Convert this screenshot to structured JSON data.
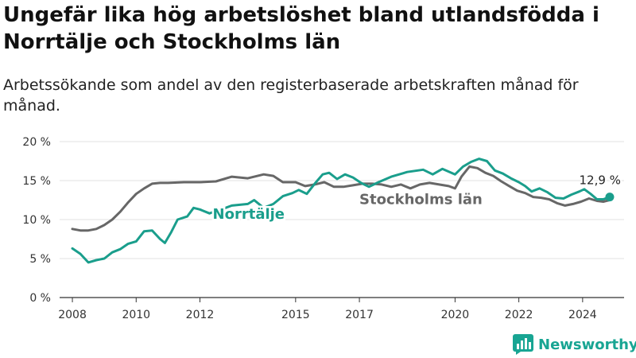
{
  "page": {
    "title": "Ungefär lika hög arbetslöshet bland utlandsfödda i Norrtälje och Stockholms län",
    "subtitle": "Arbetssökande som andel av den registerbaserade arbetskraften månad för månad.",
    "brand": "Newsworthy"
  },
  "colors": {
    "norrtalje": "#1a9e8c",
    "stockholm": "#676767",
    "grid": "#e1e1e1",
    "axis": "#333333",
    "brand": "#18a593"
  },
  "icons": {
    "brand_logo": "bar-chart-logo-icon"
  },
  "chart_data": {
    "type": "line",
    "title": "Ungefär lika hög arbetslöshet bland utlandsfödda i Norrtälje och Stockholms län",
    "subtitle": "Arbetssökande som andel av den registerbaserade arbetskraften månad för månad.",
    "xlabel": "",
    "ylabel": "",
    "ylim": [
      0,
      20
    ],
    "xlim": [
      2007.6,
      2025.3
    ],
    "y_ticks": [
      0,
      5,
      10,
      15,
      20
    ],
    "y_tick_labels": [
      "0 %",
      "5 %",
      "10 %",
      "15 %",
      "20 %"
    ],
    "x_ticks": [
      2008,
      2010,
      2012,
      2015,
      2017,
      2020,
      2022,
      2024
    ],
    "x_tick_labels": [
      "2008",
      "2010",
      "2012",
      "2015",
      "2017",
      "2020",
      "2022",
      "2024"
    ],
    "grid": true,
    "legend": "inline labels",
    "end_label": "12,9 %",
    "series": [
      {
        "name": "Norrtälje",
        "color": "#1a9e8c",
        "points": [
          [
            2008.0,
            6.3
          ],
          [
            2008.25,
            5.6
          ],
          [
            2008.5,
            4.5
          ],
          [
            2008.75,
            4.8
          ],
          [
            2009.0,
            5.0
          ],
          [
            2009.25,
            5.8
          ],
          [
            2009.5,
            6.2
          ],
          [
            2009.75,
            6.9
          ],
          [
            2010.0,
            7.2
          ],
          [
            2010.25,
            8.5
          ],
          [
            2010.5,
            8.6
          ],
          [
            2010.75,
            7.5
          ],
          [
            2010.9,
            7.0
          ],
          [
            2011.1,
            8.4
          ],
          [
            2011.3,
            10.0
          ],
          [
            2011.6,
            10.4
          ],
          [
            2011.8,
            11.5
          ],
          [
            2012.0,
            11.3
          ],
          [
            2012.3,
            10.8
          ],
          [
            2012.6,
            11.2
          ],
          [
            2012.8,
            11.5
          ],
          [
            2013.0,
            11.8
          ],
          [
            2013.5,
            12.0
          ],
          [
            2013.7,
            12.5
          ],
          [
            2014.0,
            11.5
          ],
          [
            2014.3,
            12.0
          ],
          [
            2014.6,
            13.0
          ],
          [
            2014.9,
            13.4
          ],
          [
            2015.1,
            13.8
          ],
          [
            2015.35,
            13.3
          ],
          [
            2015.6,
            14.6
          ],
          [
            2015.85,
            15.8
          ],
          [
            2016.05,
            16.0
          ],
          [
            2016.3,
            15.2
          ],
          [
            2016.55,
            15.8
          ],
          [
            2016.8,
            15.4
          ],
          [
            2017.05,
            14.7
          ],
          [
            2017.3,
            14.2
          ],
          [
            2017.6,
            14.8
          ],
          [
            2018.0,
            15.5
          ],
          [
            2018.5,
            16.1
          ],
          [
            2019.0,
            16.4
          ],
          [
            2019.3,
            15.8
          ],
          [
            2019.6,
            16.5
          ],
          [
            2020.0,
            15.8
          ],
          [
            2020.25,
            16.8
          ],
          [
            2020.5,
            17.4
          ],
          [
            2020.75,
            17.8
          ],
          [
            2021.0,
            17.5
          ],
          [
            2021.25,
            16.3
          ],
          [
            2021.5,
            15.9
          ],
          [
            2021.75,
            15.3
          ],
          [
            2022.0,
            14.8
          ],
          [
            2022.2,
            14.3
          ],
          [
            2022.4,
            13.6
          ],
          [
            2022.65,
            14.0
          ],
          [
            2022.9,
            13.5
          ],
          [
            2023.15,
            12.8
          ],
          [
            2023.4,
            12.7
          ],
          [
            2023.65,
            13.2
          ],
          [
            2023.9,
            13.6
          ],
          [
            2024.05,
            13.9
          ],
          [
            2024.25,
            13.3
          ],
          [
            2024.45,
            12.6
          ],
          [
            2024.65,
            12.6
          ],
          [
            2024.85,
            12.9
          ]
        ]
      },
      {
        "name": "Stockholms län",
        "color": "#676767",
        "points": [
          [
            2008.0,
            8.8
          ],
          [
            2008.25,
            8.6
          ],
          [
            2008.5,
            8.6
          ],
          [
            2008.75,
            8.8
          ],
          [
            2009.0,
            9.3
          ],
          [
            2009.25,
            10.0
          ],
          [
            2009.5,
            11.0
          ],
          [
            2009.75,
            12.2
          ],
          [
            2010.0,
            13.3
          ],
          [
            2010.25,
            14.0
          ],
          [
            2010.5,
            14.6
          ],
          [
            2010.75,
            14.7
          ],
          [
            2011.0,
            14.7
          ],
          [
            2011.5,
            14.8
          ],
          [
            2012.0,
            14.8
          ],
          [
            2012.5,
            14.9
          ],
          [
            2013.0,
            15.5
          ],
          [
            2013.5,
            15.3
          ],
          [
            2014.0,
            15.8
          ],
          [
            2014.3,
            15.6
          ],
          [
            2014.6,
            14.8
          ],
          [
            2015.0,
            14.8
          ],
          [
            2015.3,
            14.3
          ],
          [
            2015.6,
            14.5
          ],
          [
            2015.9,
            14.8
          ],
          [
            2016.2,
            14.2
          ],
          [
            2016.5,
            14.2
          ],
          [
            2016.8,
            14.4
          ],
          [
            2017.1,
            14.6
          ],
          [
            2017.4,
            14.6
          ],
          [
            2017.7,
            14.5
          ],
          [
            2018.0,
            14.2
          ],
          [
            2018.3,
            14.5
          ],
          [
            2018.6,
            14.0
          ],
          [
            2018.9,
            14.5
          ],
          [
            2019.2,
            14.7
          ],
          [
            2019.5,
            14.5
          ],
          [
            2019.8,
            14.3
          ],
          [
            2020.0,
            14.0
          ],
          [
            2020.2,
            15.5
          ],
          [
            2020.45,
            16.8
          ],
          [
            2020.7,
            16.6
          ],
          [
            2020.95,
            16.0
          ],
          [
            2021.2,
            15.6
          ],
          [
            2021.45,
            14.9
          ],
          [
            2021.7,
            14.3
          ],
          [
            2021.95,
            13.7
          ],
          [
            2022.2,
            13.4
          ],
          [
            2022.45,
            12.9
          ],
          [
            2022.7,
            12.8
          ],
          [
            2022.95,
            12.6
          ],
          [
            2023.2,
            12.1
          ],
          [
            2023.45,
            11.8
          ],
          [
            2023.7,
            12.0
          ],
          [
            2023.95,
            12.3
          ],
          [
            2024.2,
            12.7
          ],
          [
            2024.45,
            12.4
          ],
          [
            2024.65,
            12.3
          ],
          [
            2024.85,
            12.5
          ]
        ]
      }
    ]
  }
}
